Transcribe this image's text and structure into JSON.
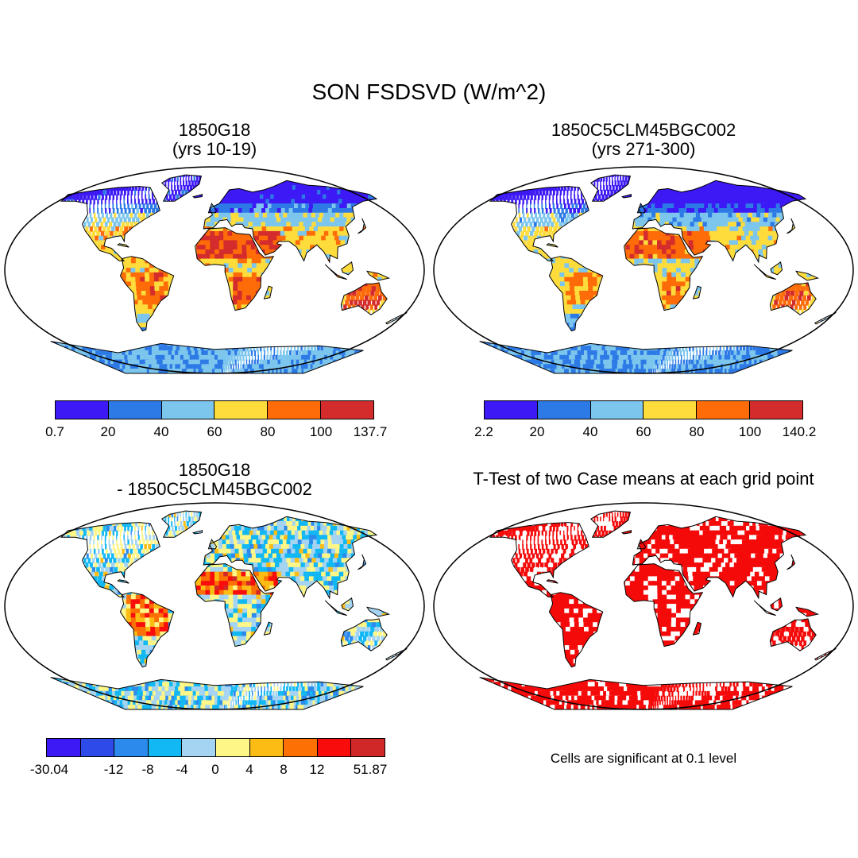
{
  "main_title": "SON FSDSVD (W/m^2)",
  "panels": {
    "p1": {
      "line1": "1850G18",
      "line2": "(yrs 10-19)"
    },
    "p2": {
      "line1": "1850C5CLM45BGC002",
      "line2": "(yrs 271-300)"
    },
    "p3": {
      "line1": "1850G18",
      "line2": "- 1850C5CLM45BGC002"
    },
    "p4": {
      "line1": "T-Test of two Case means at each grid point"
    }
  },
  "colorbars": {
    "cb1": {
      "colors": [
        "#3c19f5",
        "#2d7ae6",
        "#7cc6ee",
        "#fedc3c",
        "#fd6c08",
        "#d42c2c"
      ],
      "labels": [
        "0.7",
        "20",
        "40",
        "60",
        "80",
        "100",
        "137.7"
      ]
    },
    "cb2": {
      "colors": [
        "#3c19f5",
        "#2d7ae6",
        "#7cc6ee",
        "#fedc3c",
        "#fd6c08",
        "#d42c2c"
      ],
      "labels": [
        "2.2",
        "20",
        "40",
        "60",
        "80",
        "100",
        "140.2"
      ]
    },
    "cb3": {
      "colors": [
        "#3c19f5",
        "#2e4bea",
        "#2c8aec",
        "#12b8f4",
        "#a4d4f2",
        "#fef687",
        "#fcbc14",
        "#fc7004",
        "#f80c0c",
        "#d02828"
      ],
      "labels": [
        "-30.04",
        "",
        "-12",
        "-8",
        "-4",
        "0",
        "4",
        "8",
        "12",
        "",
        "51.87"
      ]
    }
  },
  "significance_note": "Cells are significant at 0.1 level",
  "map_colors": {
    "ocean": "#ffffff",
    "t_test_significant": "#f50a0a",
    "t_test_not_significant": "#ffffff"
  }
}
